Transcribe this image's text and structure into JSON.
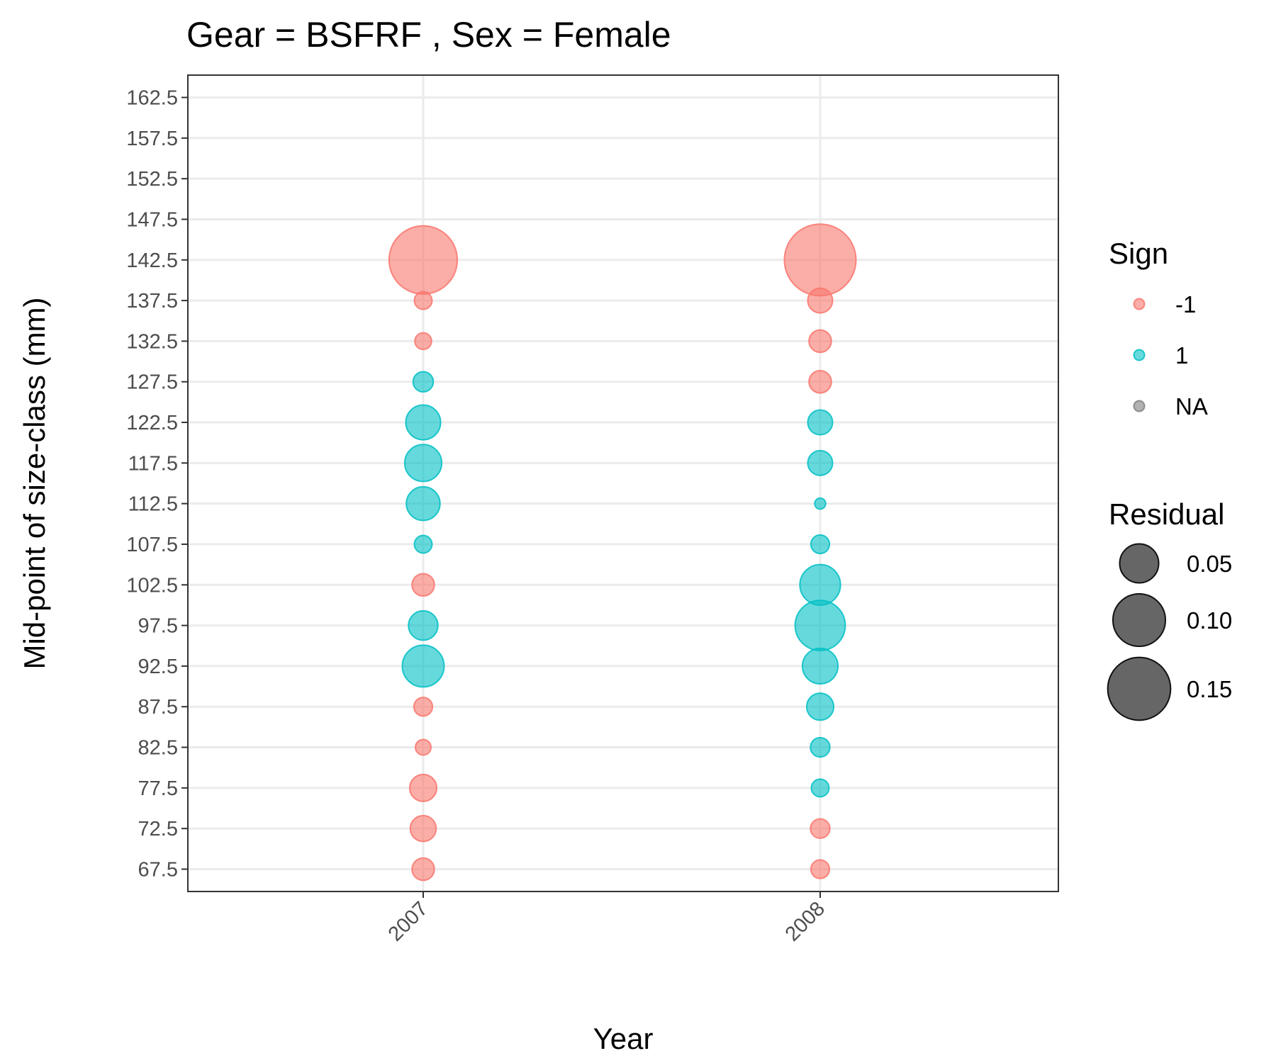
{
  "chart_data": {
    "type": "scatter",
    "title": "Gear = BSFRF , Sex = Female",
    "xlabel": "Year",
    "ylabel": "Mid-point of size-class (mm)",
    "categories": [
      "2007",
      "2008"
    ],
    "y_ticks": [
      "67.5",
      "72.5",
      "77.5",
      "82.5",
      "87.5",
      "92.5",
      "97.5",
      "102.5",
      "107.5",
      "112.5",
      "117.5",
      "122.5",
      "127.5",
      "132.5",
      "137.5",
      "142.5",
      "147.5",
      "152.5",
      "157.5",
      "162.5"
    ],
    "ylim": [
      64.75,
      165.25
    ],
    "grid": true,
    "legend_position": "right",
    "sign_legend": {
      "title": "Sign",
      "items": [
        {
          "label": "-1",
          "color": "#F8766D"
        },
        {
          "label": "1",
          "color": "#00BFC4"
        },
        {
          "label": "NA",
          "color": "#7f7f7f"
        }
      ]
    },
    "size_legend": {
      "title": "Residual",
      "items": [
        {
          "label": "0.05",
          "value": 0.05
        },
        {
          "label": "0.10",
          "value": 0.1
        },
        {
          "label": "0.15",
          "value": 0.15
        }
      ]
    },
    "colors": {
      "neg": "#F8766D",
      "pos": "#00BFC4",
      "na": "#7f7f7f"
    },
    "points": [
      {
        "x": "2007",
        "y": 67.5,
        "residual": 0.012,
        "sign": -1
      },
      {
        "x": "2007",
        "y": 72.5,
        "residual": 0.018,
        "sign": -1
      },
      {
        "x": "2007",
        "y": 77.5,
        "residual": 0.02,
        "sign": -1
      },
      {
        "x": "2007",
        "y": 82.5,
        "residual": 0.004,
        "sign": -1
      },
      {
        "x": "2007",
        "y": 87.5,
        "residual": 0.007,
        "sign": -1
      },
      {
        "x": "2007",
        "y": 92.5,
        "residual": 0.059,
        "sign": 1
      },
      {
        "x": "2007",
        "y": 97.5,
        "residual": 0.025,
        "sign": 1
      },
      {
        "x": "2007",
        "y": 102.5,
        "residual": 0.012,
        "sign": -1
      },
      {
        "x": "2007",
        "y": 107.5,
        "residual": 0.006,
        "sign": 1
      },
      {
        "x": "2007",
        "y": 112.5,
        "residual": 0.035,
        "sign": 1
      },
      {
        "x": "2007",
        "y": 117.5,
        "residual": 0.044,
        "sign": 1
      },
      {
        "x": "2007",
        "y": 122.5,
        "residual": 0.038,
        "sign": 1
      },
      {
        "x": "2007",
        "y": 127.5,
        "residual": 0.009,
        "sign": 1
      },
      {
        "x": "2007",
        "y": 132.5,
        "residual": 0.005,
        "sign": -1
      },
      {
        "x": "2007",
        "y": 137.5,
        "residual": 0.006,
        "sign": -1
      },
      {
        "x": "2007",
        "y": 142.5,
        "residual": 0.18,
        "sign": -1
      },
      {
        "x": "2008",
        "y": 67.5,
        "residual": 0.007,
        "sign": -1
      },
      {
        "x": "2008",
        "y": 72.5,
        "residual": 0.008,
        "sign": -1
      },
      {
        "x": "2008",
        "y": 77.5,
        "residual": 0.006,
        "sign": 1
      },
      {
        "x": "2008",
        "y": 82.5,
        "residual": 0.008,
        "sign": 1
      },
      {
        "x": "2008",
        "y": 87.5,
        "residual": 0.02,
        "sign": 1
      },
      {
        "x": "2008",
        "y": 92.5,
        "residual": 0.04,
        "sign": 1
      },
      {
        "x": "2008",
        "y": 97.5,
        "residual": 0.09,
        "sign": 1
      },
      {
        "x": "2008",
        "y": 102.5,
        "residual": 0.055,
        "sign": 1
      },
      {
        "x": "2008",
        "y": 107.5,
        "residual": 0.007,
        "sign": 1
      },
      {
        "x": "2008",
        "y": 112.5,
        "residual": 0.001,
        "sign": 1
      },
      {
        "x": "2008",
        "y": 117.5,
        "residual": 0.016,
        "sign": 1
      },
      {
        "x": "2008",
        "y": 122.5,
        "residual": 0.016,
        "sign": 1
      },
      {
        "x": "2008",
        "y": 127.5,
        "residual": 0.012,
        "sign": -1
      },
      {
        "x": "2008",
        "y": 132.5,
        "residual": 0.012,
        "sign": -1
      },
      {
        "x": "2008",
        "y": 137.5,
        "residual": 0.016,
        "sign": -1
      },
      {
        "x": "2008",
        "y": 142.5,
        "residual": 0.2,
        "sign": -1
      }
    ]
  }
}
